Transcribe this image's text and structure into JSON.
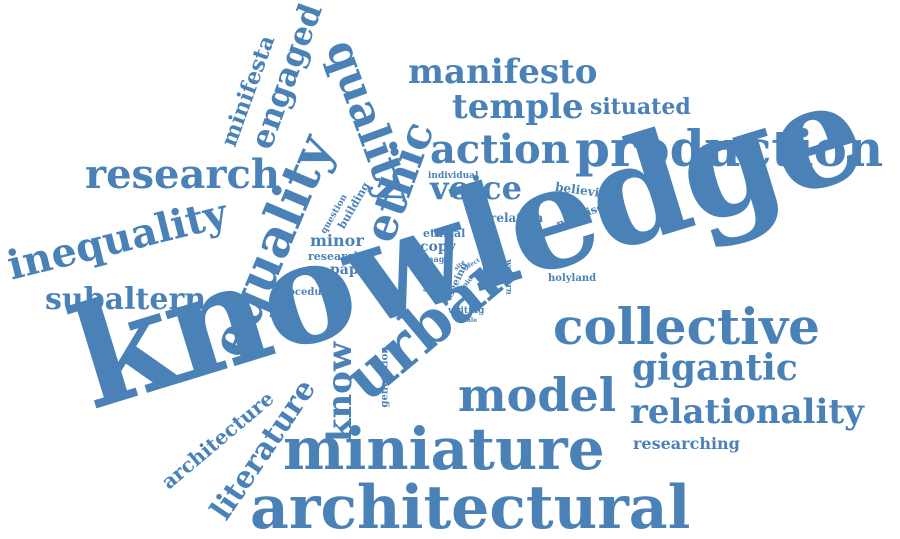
{
  "cloud": {
    "color": "#4a82b8",
    "background": "#ffffff",
    "words": [
      "knowledge",
      "architectural",
      "miniature",
      "urban",
      "collective",
      "production",
      "equality",
      "inequality",
      "research",
      "quality",
      "ethic",
      "action",
      "voice",
      "temple",
      "manifesto",
      "situated",
      "engaged",
      "minifesta",
      "model",
      "gigantic",
      "relationality",
      "researching",
      "subaltern",
      "know",
      "literature",
      "architecture",
      "believing",
      "relation",
      "promise",
      "minor",
      "researcher",
      "paper",
      "ethical",
      "copy",
      "image",
      "procedure",
      "individual",
      "building",
      "question",
      "holyland",
      "western",
      "seeing",
      "social",
      "writing",
      "generation",
      "topics",
      "site",
      "effect",
      "scale"
    ]
  }
}
